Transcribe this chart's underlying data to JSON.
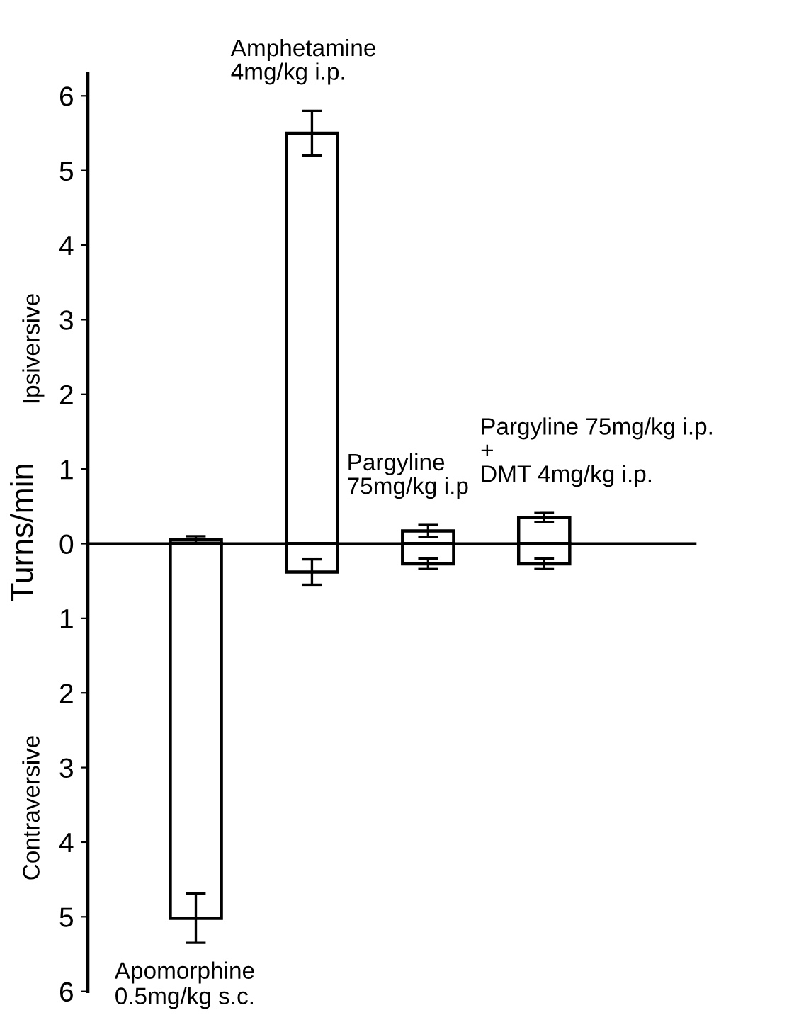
{
  "chart_data": {
    "type": "bar",
    "stacked": true,
    "ylabel": "Turns/min",
    "categories": [
      "Apomorphine\n0.5mg/kg s.c.",
      "Amphetamine\n4mg/kg i.p.",
      "Pargyline\n75mg/kg i.p",
      "Pargyline 75mg/kg i.p.\n+\nDMT 4mg/kg i.p."
    ],
    "series": [
      {
        "color": "#ffffff",
        "values": [
          0.05,
          5.5,
          0.17,
          0.35
        ],
        "errors": [
          0.05,
          0.3,
          0.08,
          0.06
        ]
      },
      {
        "color": "#ffffff",
        "values": [
          -5.02,
          -0.38,
          -0.27,
          -0.27
        ],
        "errors": [
          0.33,
          0.17,
          0.07,
          0.07
        ]
      }
    ],
    "ylim": [
      -6,
      6.3
    ],
    "yticks": [
      {
        "value": -6,
        "label": "6"
      },
      {
        "value": -5,
        "label": "5"
      },
      {
        "value": -4,
        "label": "4"
      },
      {
        "value": -3,
        "label": "3"
      },
      {
        "value": -2,
        "label": "2"
      },
      {
        "value": -1,
        "label": "1"
      },
      0,
      1,
      2,
      3,
      4,
      5,
      6
    ],
    "annotations": [
      "Ipsiversive",
      "Contraversive"
    ]
  }
}
